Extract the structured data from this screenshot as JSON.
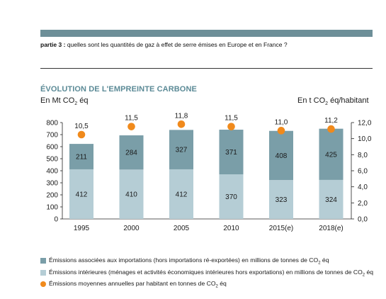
{
  "header": {
    "part_label": "partie 3 :",
    "question": "quelles sont les quantités de gaz à effet de serre émises en Europe et en France ?"
  },
  "colors": {
    "imports": "#7a9ea8",
    "domestic": "#b5cdd5",
    "per_capita": "#f08a1c",
    "title": "#5b8a96"
  },
  "chart_data": {
    "type": "bar",
    "title": "ÉVOLUTION DE L'EMPREINTE CARBONE",
    "ylabel_left": {
      "prefix": "En Mt CO",
      "sub": "2",
      "suffix": " éq"
    },
    "ylabel_right": {
      "prefix": "En t CO",
      "sub": "2",
      "suffix": " éq/habitant"
    },
    "categories": [
      "1995",
      "2000",
      "2005",
      "2010",
      "2015(e)",
      "2018(e)"
    ],
    "series": [
      {
        "key": "domestic",
        "values": [
          412,
          410,
          412,
          370,
          323,
          324
        ]
      },
      {
        "key": "imports",
        "values": [
          211,
          284,
          327,
          371,
          408,
          425
        ]
      }
    ],
    "per_capita": {
      "values": [
        10.5,
        11.5,
        11.8,
        11.5,
        11.0,
        11.2
      ],
      "labels": [
        "10,5",
        "11,5",
        "11,8",
        "11,5",
        "11,0",
        "11,2"
      ]
    },
    "ylim_left": [
      0,
      800
    ],
    "yticks_left": [
      "0",
      "100",
      "200",
      "300",
      "400",
      "500",
      "600",
      "700",
      "800"
    ],
    "ylim_right": [
      0,
      12
    ],
    "yticks_right": [
      "0,0",
      "2,0",
      "4,0",
      "6,0",
      "8,0",
      "10,0",
      "12,0"
    ],
    "stacked": true,
    "grid": false,
    "legend": [
      {
        "key": "imports",
        "parts": [
          "Émissions associées aux importations (hors importations ré-exportées) en millions de tonnes de CO",
          "2",
          " éq"
        ]
      },
      {
        "key": "domestic",
        "parts": [
          "Émissions intérieures (ménages et activités économiques intérieures hors exportations) en millions de tonnes de CO",
          "2",
          " éq"
        ]
      },
      {
        "key": "per_capita",
        "parts": [
          "Émissions moyennes annuelles par habitant en tonnes de CO",
          "2",
          " éq"
        ]
      }
    ]
  }
}
